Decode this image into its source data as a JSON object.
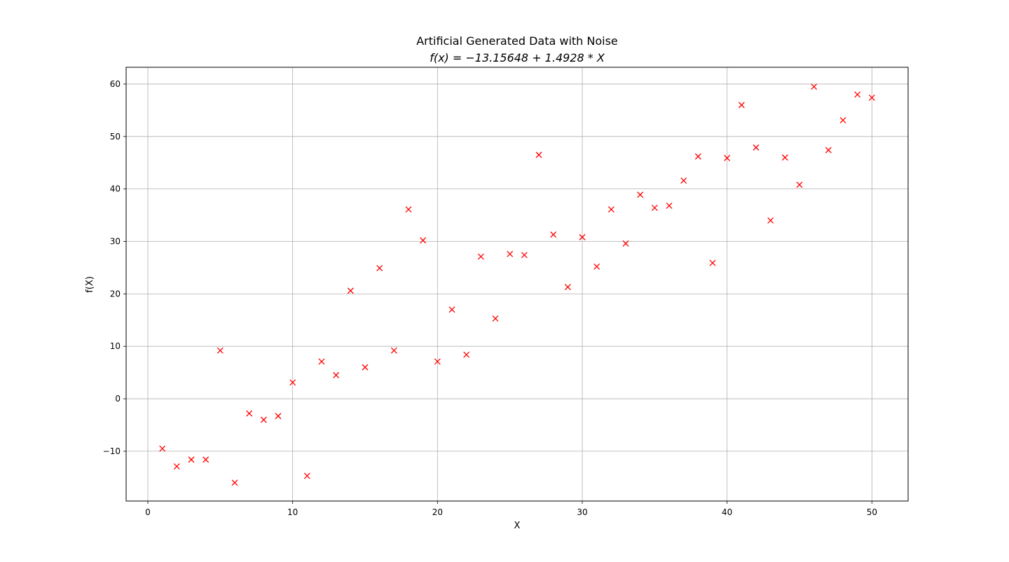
{
  "chart_data": {
    "type": "scatter",
    "title": "Artificial Generated Data with Noise",
    "subtitle": "f(x) = −13.15648 + 1.4928 * X",
    "xlabel": "X",
    "ylabel": "f(X)",
    "xlim": [
      -1.5,
      52.5
    ],
    "ylim": [
      -19.5,
      63.2
    ],
    "xticks": [
      0,
      10,
      20,
      30,
      40,
      50
    ],
    "yticks": [
      -10,
      0,
      10,
      20,
      30,
      40,
      50,
      60
    ],
    "grid": true,
    "marker": "x",
    "color": "#ff0000",
    "series": [
      {
        "name": "data",
        "x": [
          1,
          2,
          3,
          4,
          5,
          6,
          7,
          8,
          9,
          10,
          11,
          12,
          13,
          14,
          15,
          16,
          17,
          18,
          19,
          20,
          21,
          22,
          23,
          24,
          25,
          26,
          27,
          28,
          29,
          30,
          31,
          32,
          33,
          34,
          35,
          36,
          37,
          38,
          39,
          40,
          41,
          42,
          43,
          44,
          45,
          46,
          47,
          48,
          49,
          50
        ],
        "y": [
          -9.5,
          -12.9,
          -11.6,
          -11.6,
          9.2,
          -16.0,
          -2.8,
          -4.0,
          -3.3,
          3.1,
          -14.7,
          7.1,
          4.5,
          20.6,
          6.0,
          24.9,
          9.2,
          36.1,
          30.2,
          7.1,
          17.0,
          8.4,
          27.1,
          15.3,
          27.6,
          27.4,
          46.5,
          31.3,
          21.3,
          30.8,
          25.2,
          36.1,
          29.6,
          38.9,
          36.4,
          36.8,
          41.6,
          46.2,
          25.9,
          45.9,
          56.0,
          47.9,
          34.0,
          46.0,
          40.8,
          59.5,
          47.4,
          53.1,
          58.0,
          57.4
        ]
      }
    ]
  }
}
